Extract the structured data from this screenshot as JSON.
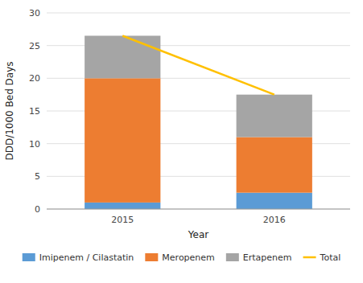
{
  "chart_data": {
    "type": "bar",
    "stacked": true,
    "categories": [
      "2015",
      "2016"
    ],
    "series": [
      {
        "name": "Imipenem / Cilastatin",
        "type": "bar",
        "color": "#5B9BD5",
        "values": [
          1.0,
          2.5
        ]
      },
      {
        "name": "Meropenem",
        "type": "bar",
        "color": "#ED7D31",
        "values": [
          19.0,
          8.5
        ]
      },
      {
        "name": "Ertapenem",
        "type": "bar",
        "color": "#A5A5A5",
        "values": [
          6.5,
          6.5
        ]
      },
      {
        "name": "Total",
        "type": "line",
        "color": "#FFC000",
        "values": [
          26.5,
          17.5
        ]
      }
    ],
    "xlabel": "Year",
    "ylabel": "DDD/1000 Bed Days",
    "ylim": [
      0,
      30
    ],
    "yticks": [
      0,
      5,
      10,
      15,
      20,
      25,
      30
    ],
    "grid": true,
    "legend": "bottom"
  }
}
